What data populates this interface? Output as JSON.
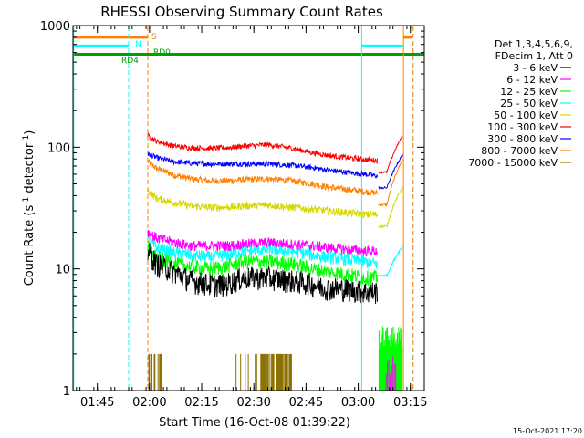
{
  "chart_data": {
    "type": "line",
    "title": "RHESSI Observing Summary Count Rates",
    "xlabel": "Start Time (16-Oct-08 01:39:22)",
    "ylabel": "Count Rate (s⁻¹ detector⁻¹)",
    "ylabel_main": "Count Rate (s",
    "ylabel_exp1": "-1",
    "ylabel_mid": " detector",
    "ylabel_exp2": "-1",
    "ylabel_end": ")",
    "yscale": "log",
    "ylim": [
      1,
      1000
    ],
    "xlim_min": [
      -1,
      100
    ],
    "xticks": [
      {
        "min": 6,
        "label": "01:45"
      },
      {
        "min": 21,
        "label": "02:00"
      },
      {
        "min": 36,
        "label": "02:15"
      },
      {
        "min": 51,
        "label": "02:30"
      },
      {
        "min": 66,
        "label": "02:45"
      },
      {
        "min": 81,
        "label": "03:00"
      },
      {
        "min": 96,
        "label": "03:15"
      }
    ],
    "yticks": [
      {
        "value": 1,
        "label": "1"
      },
      {
        "value": 10,
        "label": "10"
      },
      {
        "value": 100,
        "label": "100"
      },
      {
        "value": 1000,
        "label": "1000"
      }
    ],
    "legend_position": "right",
    "legend_header": [
      "Det 1,3,4,5,6,9,",
      "FDecim 1, Att 0"
    ],
    "series": [
      {
        "name": "3 - 6 keV",
        "color": "#000000",
        "key": "e3_6"
      },
      {
        "name": "6 - 12 keV",
        "color": "#ff00ff",
        "key": "e6_12"
      },
      {
        "name": "12 - 25 keV",
        "color": "#00ff00",
        "key": "e12_25"
      },
      {
        "name": "25 - 50 keV",
        "color": "#00ffff",
        "key": "e25_50"
      },
      {
        "name": "50 - 100 keV",
        "color": "#d7d700",
        "key": "e50_100"
      },
      {
        "name": "100 - 300 keV",
        "color": "#ff0000",
        "key": "e100_300"
      },
      {
        "name": "300 - 800 keV",
        "color": "#0000ff",
        "key": "e300_800"
      },
      {
        "name": "800 - 7000 keV",
        "color": "#ff8000",
        "key": "e800_7000"
      },
      {
        "name": "7000 - 15000 keV",
        "color": "#8c7000",
        "key": "e7000_15000"
      }
    ],
    "profiles": {
      "e3_6": {
        "t": [
          20.5,
          23,
          28,
          33,
          38,
          43,
          48,
          55,
          62,
          68,
          72,
          78,
          83,
          86.5
        ],
        "v": [
          14,
          11,
          9.5,
          8,
          7.5,
          7.5,
          8.5,
          8.5,
          8,
          7.5,
          7,
          6.8,
          6.5,
          6.5
        ]
      },
      "e6_12": {
        "t": [
          20.5,
          23,
          28,
          33,
          38,
          43,
          48,
          55,
          62,
          68,
          72,
          78,
          83,
          86.5
        ],
        "v": [
          20,
          18,
          16.5,
          15.5,
          15.5,
          15.5,
          16,
          16.5,
          16,
          15.5,
          15,
          14.5,
          14,
          14
        ]
      },
      "e12_25": {
        "t": [
          20.5,
          23,
          28,
          33,
          38,
          43,
          48,
          55,
          62,
          68,
          72,
          78,
          83,
          86.5
        ],
        "v": [
          15,
          12.5,
          11,
          10.5,
          10,
          10.5,
          11.5,
          11.5,
          11,
          10,
          9.5,
          9,
          8.5,
          8.5
        ]
      },
      "e25_50": {
        "t": [
          20.5,
          23,
          28,
          33,
          38,
          43,
          48,
          55,
          62,
          68,
          72,
          78,
          83,
          86.5
        ],
        "v": [
          17,
          15,
          13.5,
          13,
          12.5,
          13,
          14,
          14.5,
          14,
          13,
          12.5,
          12,
          11.5,
          11
        ]
      },
      "e50_100": {
        "t": [
          20.5,
          23,
          28,
          33,
          38,
          43,
          48,
          55,
          62,
          68,
          72,
          78,
          83,
          86.5
        ],
        "v": [
          44,
          38,
          35,
          33,
          32,
          32,
          33,
          33.5,
          32,
          31,
          30,
          29,
          28,
          28
        ]
      },
      "e100_300": {
        "t": [
          20.5,
          23,
          28,
          33,
          38,
          43,
          48,
          55,
          62,
          68,
          72,
          78,
          83,
          86.5
        ],
        "v": [
          125,
          112,
          102,
          99,
          98,
          99,
          102,
          105,
          98,
          90,
          86,
          82,
          79,
          78
        ]
      },
      "e300_800": {
        "t": [
          20.5,
          23,
          28,
          33,
          38,
          43,
          48,
          55,
          62,
          68,
          72,
          78,
          83,
          86.5
        ],
        "v": [
          88,
          82,
          76,
          74,
          73,
          73,
          73,
          73,
          71,
          68,
          65,
          62,
          60,
          58
        ]
      },
      "e800_7000": {
        "t": [
          20.5,
          23,
          28,
          33,
          38,
          43,
          48,
          55,
          62,
          68,
          72,
          78,
          83,
          86.5
        ],
        "v": [
          76,
          67,
          59,
          55,
          53,
          53,
          54,
          55,
          53,
          50,
          47,
          45,
          43,
          42
        ]
      },
      "e7000_15000": {
        "t": [],
        "v": []
      }
    },
    "state_bars": [
      {
        "label": "S",
        "color": "#ff8000",
        "value": 800,
        "segments": [
          [
            -1,
            20.5
          ],
          [
            94,
            96.5
          ]
        ]
      },
      {
        "label": "N",
        "color": "#00ffff",
        "value": 680,
        "segments": [
          [
            -1,
            15
          ],
          [
            82,
            94
          ]
        ]
      },
      {
        "label": "RD4",
        "color": "#00a000",
        "value": 580,
        "segments": [
          [
            -1,
            100
          ]
        ]
      },
      {
        "label": "RD0",
        "color": "#00a000",
        "value": 580,
        "segments": []
      }
    ],
    "vertical_lines": [
      {
        "min": -0.8,
        "color": "#00ffff",
        "dashed": false
      },
      {
        "min": 15,
        "color": "#00ffff",
        "dashed": true
      },
      {
        "min": 20.5,
        "color": "#ff8000",
        "dashed": true
      },
      {
        "min": 82,
        "color": "#00ffff",
        "dashed": false
      },
      {
        "min": 94,
        "color": "#ff8000",
        "dashed": false
      },
      {
        "min": 96.5,
        "color": "#00ffff",
        "dashed": true
      },
      {
        "min": 96.8,
        "color": "#ff8000",
        "dashed": true
      }
    ],
    "footer": "15-Oct-2021 17:20"
  }
}
